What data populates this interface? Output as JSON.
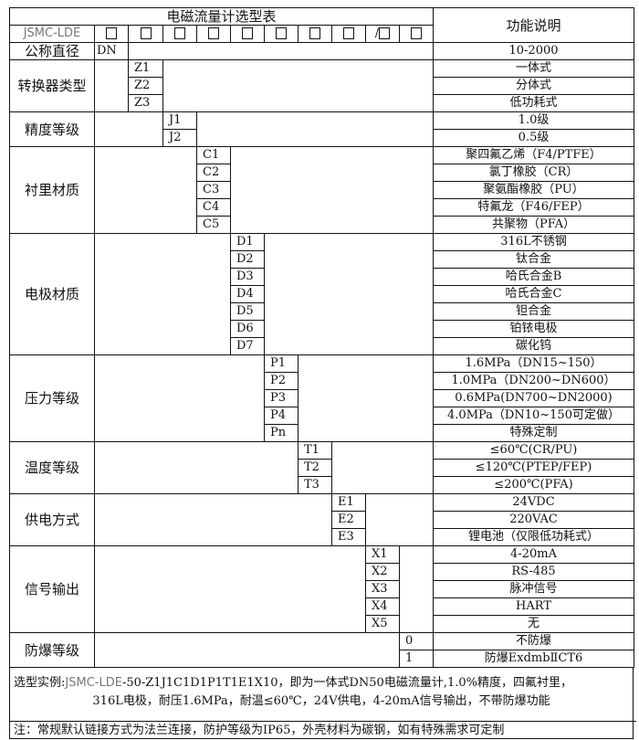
{
  "title": "电磁流量计选型表",
  "function_header": "功能说明",
  "model_prefix": "JSMC-LDE",
  "model_slots": [
    "□",
    "□",
    "□",
    "□",
    "□",
    "□",
    "□",
    "□",
    "/□",
    "□"
  ],
  "diameter": {
    "label": "公称直径",
    "code": "DN",
    "desc": "10-2000"
  },
  "sections": [
    {
      "label": "转换器类型",
      "col": 2,
      "rows": [
        {
          "code": "Z1",
          "desc": "一体式"
        },
        {
          "code": "Z2",
          "desc": "分体式"
        },
        {
          "code": "Z3",
          "desc": "低功耗式"
        }
      ]
    },
    {
      "label": "精度等级",
      "col": 3,
      "rows": [
        {
          "code": "J1",
          "desc": "1.0级"
        },
        {
          "code": "J2",
          "desc": "0.5级"
        }
      ]
    },
    {
      "label": "衬里材质",
      "col": 4,
      "rows": [
        {
          "code": "C1",
          "desc": "聚四氟乙烯（F4/PTFE）"
        },
        {
          "code": "C2",
          "desc": "氯丁橡胶（CR）"
        },
        {
          "code": "C3",
          "desc": "聚氨酯橡胶（PU）"
        },
        {
          "code": "C4",
          "desc": "特氟龙（F46/FEP）"
        },
        {
          "code": "C5",
          "desc": "共聚物（PFA）"
        }
      ]
    },
    {
      "label": "电极材质",
      "col": 5,
      "rows": [
        {
          "code": "D1",
          "desc": "316L不锈钢"
        },
        {
          "code": "D2",
          "desc": "钛合金"
        },
        {
          "code": "D3",
          "desc": "哈氏合金B"
        },
        {
          "code": "D4",
          "desc": "哈氏合金C"
        },
        {
          "code": "D5",
          "desc": "钽合金"
        },
        {
          "code": "D6",
          "desc": "铂铱电极"
        },
        {
          "code": "D7",
          "desc": "碳化钨"
        }
      ]
    },
    {
      "label": "压力等级",
      "col": 6,
      "rows": [
        {
          "code": "P1",
          "desc": "1.6MPa（DN15~150）"
        },
        {
          "code": "P2",
          "desc": "1.0MPa（DN200~DN600）"
        },
        {
          "code": "P3",
          "desc": "0.6MPa(DN700~DN2000)"
        },
        {
          "code": "P4",
          "desc": "4.0MPa（DN10~150可定做）"
        },
        {
          "code": "Pn",
          "desc": "特殊定制"
        }
      ]
    },
    {
      "label": "温度等级",
      "col": 7,
      "rows": [
        {
          "code": "T1",
          "desc": "≤60℃(CR/PU)"
        },
        {
          "code": "T2",
          "desc": "≤120℃(PTEP/FEP)"
        },
        {
          "code": "T3",
          "desc": "≤200℃(PFA)"
        }
      ]
    },
    {
      "label": "供电方式",
      "col": 8,
      "rows": [
        {
          "code": "E1",
          "desc": "24VDC"
        },
        {
          "code": "E2",
          "desc": "220VAC"
        },
        {
          "code": "E3",
          "desc": "锂电池（仅限低功耗式）"
        }
      ]
    },
    {
      "label": "信号输出",
      "col": 9,
      "rows": [
        {
          "code": "X1",
          "desc": "4-20mA"
        },
        {
          "code": "X2",
          "desc": "RS-485"
        },
        {
          "code": "X3",
          "desc": "脉冲信号"
        },
        {
          "code": "X4",
          "desc": "HART"
        },
        {
          "code": "X5",
          "desc": "无"
        }
      ]
    },
    {
      "label": "防爆等级",
      "col": 10,
      "rows": [
        {
          "code": "0",
          "desc": "不防爆"
        },
        {
          "code": "1",
          "desc": "防爆ExdmbⅡCT6"
        }
      ]
    }
  ],
  "example": {
    "label": "选型实例:",
    "code": "JSMC-LDE",
    "line1_rest": "-50-Z1J1C1D1P1T1E1X10，即为一体式DN50电磁流量计,1.0%精度，四氟衬里，",
    "line2": "316L电极，耐压1.6MPa，耐温≤60℃，24V供电，4-20mA信号输出，不带防爆功能"
  },
  "note": "注：常规默认链接方式为法兰连接，防护等级为IP65，外壳材料为碳钢，如有特殊需求可定制"
}
